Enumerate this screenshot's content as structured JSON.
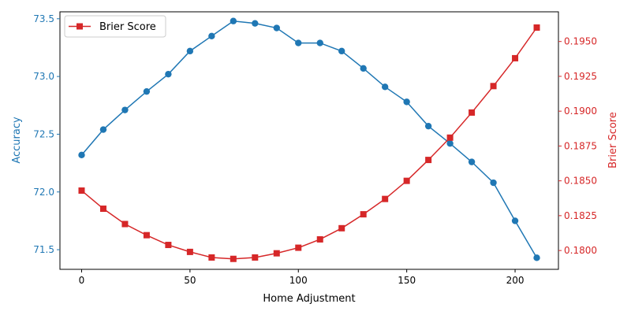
{
  "chart_data": {
    "type": "line",
    "xlabel": "Home Adjustment",
    "ylabel_left": "Accuracy",
    "ylabel_right": "Brier Score",
    "x": [
      0,
      10,
      20,
      30,
      40,
      50,
      60,
      70,
      80,
      90,
      100,
      110,
      120,
      130,
      140,
      150,
      160,
      170,
      180,
      190,
      200,
      210
    ],
    "xlim": [
      -10,
      220
    ],
    "xticks": [
      0,
      50,
      100,
      150,
      200
    ],
    "ylim_left": [
      71.33,
      73.56
    ],
    "yticks_left": [
      71.5,
      72.0,
      72.5,
      73.0,
      73.5
    ],
    "ylim_right": [
      0.17865,
      0.19713
    ],
    "yticks_right": [
      0.18,
      0.1825,
      0.185,
      0.1875,
      0.19,
      0.1925,
      0.195
    ],
    "grid": false,
    "legend_position": "top-left",
    "series": [
      {
        "axis": "left",
        "marker": "circle",
        "color": "#1f77b4",
        "values": [
          72.32,
          72.54,
          72.71,
          72.87,
          73.02,
          73.22,
          73.35,
          73.48,
          73.46,
          73.42,
          73.29,
          73.29,
          73.22,
          73.07,
          72.91,
          72.78,
          72.57,
          72.42,
          72.26,
          72.08,
          71.75,
          71.43
        ]
      },
      {
        "name": "Brier Score",
        "axis": "right",
        "marker": "square",
        "color": "#d62728",
        "values": [
          0.1843,
          0.183,
          0.1819,
          0.1811,
          0.1804,
          0.1799,
          0.1795,
          0.1794,
          0.1795,
          0.1798,
          0.1802,
          0.1808,
          0.1816,
          0.1826,
          0.1837,
          0.185,
          0.1865,
          0.1881,
          0.1899,
          0.1918,
          0.1938,
          0.196
        ]
      }
    ]
  }
}
